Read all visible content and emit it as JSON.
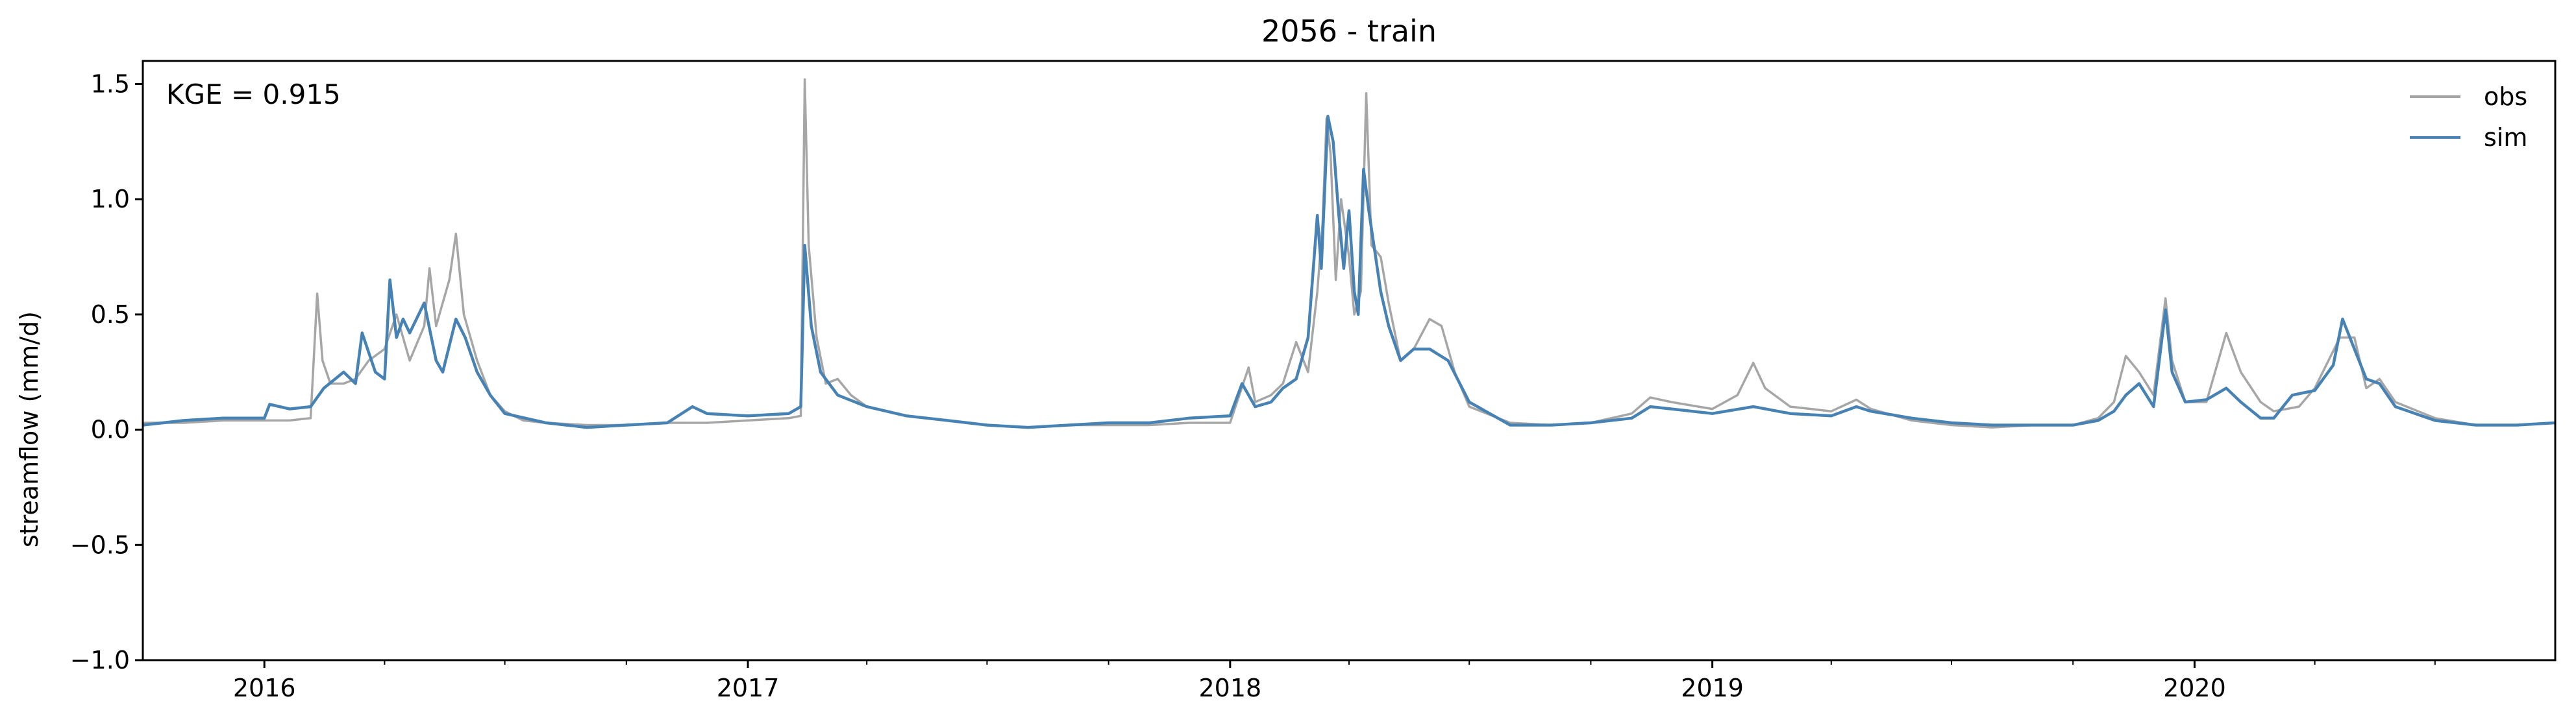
{
  "chart_data": {
    "type": "line",
    "title": "2056 - train",
    "xlabel": "",
    "ylabel": "streamflow (mm/d)",
    "ylim": [
      -1.0,
      1.6
    ],
    "xlim": [
      "2015-10-01",
      "2020-09-30"
    ],
    "yticks": [
      -1.0,
      -0.5,
      0.0,
      0.5,
      1.0,
      1.5
    ],
    "ytick_labels": [
      "−1.0",
      "−0.5",
      "0.0",
      "0.5",
      "1.0",
      "1.5"
    ],
    "xtick_labels": [
      "2016",
      "2017",
      "2018",
      "2019",
      "2020"
    ],
    "xtick_dates": [
      "2016-01-01",
      "2017-01-01",
      "2018-01-01",
      "2019-01-01",
      "2020-01-01"
    ],
    "annotation": "KGE = 0.915",
    "grid": false,
    "legend_position": "top-right",
    "series": [
      {
        "name": "obs",
        "color": "#a6a6a6",
        "points": [
          [
            "2015-10-01",
            0.03
          ],
          [
            "2015-11-01",
            0.03
          ],
          [
            "2015-12-01",
            0.04
          ],
          [
            "2016-01-01",
            0.04
          ],
          [
            "2016-01-20",
            0.04
          ],
          [
            "2016-02-05",
            0.05
          ],
          [
            "2016-02-10",
            0.59
          ],
          [
            "2016-02-14",
            0.3
          ],
          [
            "2016-02-20",
            0.2
          ],
          [
            "2016-03-01",
            0.2
          ],
          [
            "2016-03-10",
            0.22
          ],
          [
            "2016-03-20",
            0.3
          ],
          [
            "2016-04-01",
            0.35
          ],
          [
            "2016-04-10",
            0.5
          ],
          [
            "2016-04-15",
            0.4
          ],
          [
            "2016-04-20",
            0.3
          ],
          [
            "2016-05-01",
            0.45
          ],
          [
            "2016-05-05",
            0.7
          ],
          [
            "2016-05-10",
            0.45
          ],
          [
            "2016-05-20",
            0.65
          ],
          [
            "2016-05-25",
            0.85
          ],
          [
            "2016-05-31",
            0.5
          ],
          [
            "2016-06-10",
            0.3
          ],
          [
            "2016-06-20",
            0.15
          ],
          [
            "2016-07-01",
            0.08
          ],
          [
            "2016-07-15",
            0.04
          ],
          [
            "2016-08-01",
            0.03
          ],
          [
            "2016-09-01",
            0.02
          ],
          [
            "2016-10-01",
            0.02
          ],
          [
            "2016-11-01",
            0.03
          ],
          [
            "2016-11-20",
            0.03
          ],
          [
            "2016-12-01",
            0.03
          ],
          [
            "2017-01-01",
            0.04
          ],
          [
            "2017-02-01",
            0.05
          ],
          [
            "2017-02-10",
            0.06
          ],
          [
            "2017-02-13",
            1.52
          ],
          [
            "2017-02-16",
            0.8
          ],
          [
            "2017-02-22",
            0.4
          ],
          [
            "2017-03-01",
            0.2
          ],
          [
            "2017-03-10",
            0.22
          ],
          [
            "2017-03-20",
            0.15
          ],
          [
            "2017-04-01",
            0.1
          ],
          [
            "2017-05-01",
            0.06
          ],
          [
            "2017-06-01",
            0.04
          ],
          [
            "2017-07-01",
            0.02
          ],
          [
            "2017-08-01",
            0.01
          ],
          [
            "2017-09-01",
            0.02
          ],
          [
            "2017-10-01",
            0.02
          ],
          [
            "2017-11-01",
            0.02
          ],
          [
            "2017-12-01",
            0.03
          ],
          [
            "2018-01-01",
            0.03
          ],
          [
            "2018-01-15",
            0.27
          ],
          [
            "2018-01-20",
            0.12
          ],
          [
            "2018-02-01",
            0.15
          ],
          [
            "2018-02-10",
            0.2
          ],
          [
            "2018-02-20",
            0.38
          ],
          [
            "2018-03-01",
            0.25
          ],
          [
            "2018-03-08",
            0.6
          ],
          [
            "2018-03-12",
            0.9
          ],
          [
            "2018-03-15",
            1.35
          ],
          [
            "2018-03-18",
            1.2
          ],
          [
            "2018-03-22",
            0.65
          ],
          [
            "2018-03-26",
            1.0
          ],
          [
            "2018-04-01",
            0.75
          ],
          [
            "2018-04-05",
            0.5
          ],
          [
            "2018-04-10",
            0.6
          ],
          [
            "2018-04-14",
            1.46
          ],
          [
            "2018-04-18",
            0.8
          ],
          [
            "2018-04-25",
            0.75
          ],
          [
            "2018-05-01",
            0.55
          ],
          [
            "2018-05-10",
            0.3
          ],
          [
            "2018-05-20",
            0.35
          ],
          [
            "2018-06-01",
            0.48
          ],
          [
            "2018-06-10",
            0.45
          ],
          [
            "2018-06-20",
            0.25
          ],
          [
            "2018-07-01",
            0.1
          ],
          [
            "2018-08-01",
            0.03
          ],
          [
            "2018-09-01",
            0.02
          ],
          [
            "2018-10-01",
            0.03
          ],
          [
            "2018-11-01",
            0.07
          ],
          [
            "2018-11-15",
            0.14
          ],
          [
            "2018-12-01",
            0.12
          ],
          [
            "2019-01-01",
            0.09
          ],
          [
            "2019-01-20",
            0.15
          ],
          [
            "2019-02-01",
            0.29
          ],
          [
            "2019-02-10",
            0.18
          ],
          [
            "2019-03-01",
            0.1
          ],
          [
            "2019-04-01",
            0.08
          ],
          [
            "2019-04-20",
            0.13
          ],
          [
            "2019-05-01",
            0.09
          ],
          [
            "2019-06-01",
            0.04
          ],
          [
            "2019-07-01",
            0.02
          ],
          [
            "2019-08-01",
            0.01
          ],
          [
            "2019-09-01",
            0.02
          ],
          [
            "2019-10-01",
            0.02
          ],
          [
            "2019-10-20",
            0.05
          ],
          [
            "2019-11-01",
            0.12
          ],
          [
            "2019-11-10",
            0.32
          ],
          [
            "2019-11-20",
            0.25
          ],
          [
            "2019-12-01",
            0.15
          ],
          [
            "2019-12-10",
            0.57
          ],
          [
            "2019-12-15",
            0.3
          ],
          [
            "2019-12-25",
            0.12
          ],
          [
            "2020-01-10",
            0.12
          ],
          [
            "2020-01-25",
            0.42
          ],
          [
            "2020-02-05",
            0.25
          ],
          [
            "2020-02-20",
            0.12
          ],
          [
            "2020-03-01",
            0.08
          ],
          [
            "2020-03-20",
            0.1
          ],
          [
            "2020-04-01",
            0.18
          ],
          [
            "2020-04-20",
            0.4
          ],
          [
            "2020-05-01",
            0.4
          ],
          [
            "2020-05-10",
            0.18
          ],
          [
            "2020-05-20",
            0.22
          ],
          [
            "2020-06-01",
            0.12
          ],
          [
            "2020-07-01",
            0.05
          ],
          [
            "2020-08-01",
            0.02
          ],
          [
            "2020-09-01",
            0.02
          ],
          [
            "2020-09-30",
            0.03
          ]
        ]
      },
      {
        "name": "sim",
        "color": "#4682b4",
        "points": [
          [
            "2015-10-01",
            0.02
          ],
          [
            "2015-11-01",
            0.04
          ],
          [
            "2015-12-01",
            0.05
          ],
          [
            "2016-01-01",
            0.05
          ],
          [
            "2016-01-05",
            0.11
          ],
          [
            "2016-01-20",
            0.09
          ],
          [
            "2016-02-05",
            0.1
          ],
          [
            "2016-02-15",
            0.18
          ],
          [
            "2016-03-01",
            0.25
          ],
          [
            "2016-03-10",
            0.2
          ],
          [
            "2016-03-15",
            0.42
          ],
          [
            "2016-03-25",
            0.25
          ],
          [
            "2016-04-01",
            0.22
          ],
          [
            "2016-04-05",
            0.65
          ],
          [
            "2016-04-10",
            0.4
          ],
          [
            "2016-04-15",
            0.48
          ],
          [
            "2016-04-20",
            0.42
          ],
          [
            "2016-05-01",
            0.55
          ],
          [
            "2016-05-10",
            0.3
          ],
          [
            "2016-05-15",
            0.25
          ],
          [
            "2016-05-25",
            0.48
          ],
          [
            "2016-06-01",
            0.4
          ],
          [
            "2016-06-10",
            0.25
          ],
          [
            "2016-06-20",
            0.15
          ],
          [
            "2016-07-01",
            0.07
          ],
          [
            "2016-08-01",
            0.03
          ],
          [
            "2016-09-01",
            0.01
          ],
          [
            "2016-10-01",
            0.02
          ],
          [
            "2016-11-01",
            0.03
          ],
          [
            "2016-11-20",
            0.1
          ],
          [
            "2016-12-01",
            0.07
          ],
          [
            "2017-01-01",
            0.06
          ],
          [
            "2017-02-01",
            0.07
          ],
          [
            "2017-02-10",
            0.1
          ],
          [
            "2017-02-13",
            0.8
          ],
          [
            "2017-02-18",
            0.45
          ],
          [
            "2017-02-25",
            0.25
          ],
          [
            "2017-03-10",
            0.15
          ],
          [
            "2017-04-01",
            0.1
          ],
          [
            "2017-05-01",
            0.06
          ],
          [
            "2017-06-01",
            0.04
          ],
          [
            "2017-07-01",
            0.02
          ],
          [
            "2017-08-01",
            0.01
          ],
          [
            "2017-09-01",
            0.02
          ],
          [
            "2017-10-01",
            0.03
          ],
          [
            "2017-11-01",
            0.03
          ],
          [
            "2017-12-01",
            0.05
          ],
          [
            "2018-01-01",
            0.06
          ],
          [
            "2018-01-10",
            0.2
          ],
          [
            "2018-01-20",
            0.1
          ],
          [
            "2018-02-01",
            0.12
          ],
          [
            "2018-02-10",
            0.18
          ],
          [
            "2018-02-20",
            0.22
          ],
          [
            "2018-03-01",
            0.4
          ],
          [
            "2018-03-08",
            0.93
          ],
          [
            "2018-03-11",
            0.7
          ],
          [
            "2018-03-16",
            1.36
          ],
          [
            "2018-03-20",
            1.25
          ],
          [
            "2018-03-24",
            0.95
          ],
          [
            "2018-03-28",
            0.7
          ],
          [
            "2018-04-01",
            0.95
          ],
          [
            "2018-04-05",
            0.6
          ],
          [
            "2018-04-08",
            0.5
          ],
          [
            "2018-04-12",
            1.13
          ],
          [
            "2018-04-16",
            0.95
          ],
          [
            "2018-04-25",
            0.6
          ],
          [
            "2018-05-01",
            0.45
          ],
          [
            "2018-05-10",
            0.3
          ],
          [
            "2018-05-20",
            0.35
          ],
          [
            "2018-06-01",
            0.35
          ],
          [
            "2018-06-15",
            0.3
          ],
          [
            "2018-07-01",
            0.12
          ],
          [
            "2018-08-01",
            0.02
          ],
          [
            "2018-09-01",
            0.02
          ],
          [
            "2018-10-01",
            0.03
          ],
          [
            "2018-11-01",
            0.05
          ],
          [
            "2018-11-15",
            0.1
          ],
          [
            "2018-12-01",
            0.09
          ],
          [
            "2019-01-01",
            0.07
          ],
          [
            "2019-02-01",
            0.1
          ],
          [
            "2019-03-01",
            0.07
          ],
          [
            "2019-04-01",
            0.06
          ],
          [
            "2019-04-20",
            0.1
          ],
          [
            "2019-05-01",
            0.08
          ],
          [
            "2019-06-01",
            0.05
          ],
          [
            "2019-07-01",
            0.03
          ],
          [
            "2019-08-01",
            0.02
          ],
          [
            "2019-09-01",
            0.02
          ],
          [
            "2019-10-01",
            0.02
          ],
          [
            "2019-10-20",
            0.04
          ],
          [
            "2019-11-01",
            0.08
          ],
          [
            "2019-11-10",
            0.15
          ],
          [
            "2019-11-20",
            0.2
          ],
          [
            "2019-12-01",
            0.1
          ],
          [
            "2019-12-10",
            0.52
          ],
          [
            "2019-12-15",
            0.25
          ],
          [
            "2019-12-25",
            0.12
          ],
          [
            "2020-01-10",
            0.13
          ],
          [
            "2020-01-25",
            0.18
          ],
          [
            "2020-02-05",
            0.12
          ],
          [
            "2020-02-20",
            0.05
          ],
          [
            "2020-03-01",
            0.05
          ],
          [
            "2020-03-15",
            0.15
          ],
          [
            "2020-04-01",
            0.17
          ],
          [
            "2020-04-15",
            0.28
          ],
          [
            "2020-04-22",
            0.48
          ],
          [
            "2020-05-01",
            0.35
          ],
          [
            "2020-05-10",
            0.22
          ],
          [
            "2020-05-20",
            0.2
          ],
          [
            "2020-06-01",
            0.1
          ],
          [
            "2020-07-01",
            0.04
          ],
          [
            "2020-08-01",
            0.02
          ],
          [
            "2020-09-01",
            0.02
          ],
          [
            "2020-09-30",
            0.03
          ]
        ]
      }
    ]
  }
}
